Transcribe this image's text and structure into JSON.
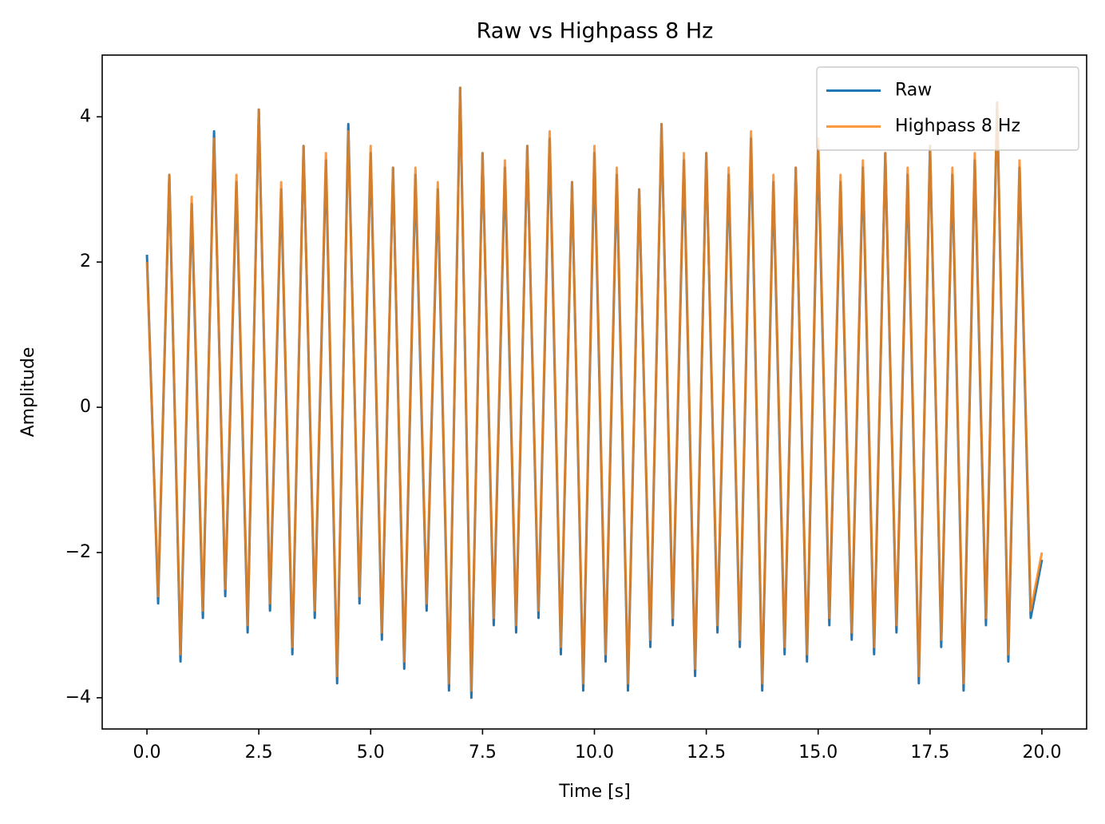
{
  "chart_data": {
    "type": "line",
    "title": "Raw vs Highpass 8 Hz",
    "xlabel": "Time [s]",
    "ylabel": "Amplitude",
    "x": [
      0,
      0.25,
      0.5,
      0.75,
      1,
      1.25,
      1.5,
      1.75,
      2,
      2.25,
      2.5,
      2.75,
      3,
      3.25,
      3.5,
      3.75,
      4,
      4.25,
      4.5,
      4.75,
      5,
      5.25,
      5.5,
      5.75,
      6,
      6.25,
      6.5,
      6.75,
      7,
      7.25,
      7.5,
      7.75,
      8,
      8.25,
      8.5,
      8.75,
      9,
      9.25,
      9.5,
      9.75,
      10,
      10.25,
      10.5,
      10.75,
      11,
      11.25,
      11.5,
      11.75,
      12,
      12.25,
      12.5,
      12.75,
      13,
      13.25,
      13.5,
      13.75,
      14,
      14.25,
      14.5,
      14.75,
      15,
      15.25,
      15.5,
      15.75,
      16,
      16.25,
      16.5,
      16.75,
      17,
      17.25,
      17.5,
      17.75,
      18,
      18.25,
      18.5,
      18.75,
      19,
      19.25,
      19.5,
      19.75,
      20
    ],
    "series": [
      {
        "name": "Raw",
        "color": "#1f77b4",
        "opacity": 1,
        "values": [
          2.1,
          -2.7,
          3.2,
          -3.5,
          2.8,
          -2.9,
          3.8,
          -2.6,
          3.1,
          -3.1,
          4.1,
          -2.8,
          3.0,
          -3.4,
          3.6,
          -2.9,
          3.4,
          -3.8,
          3.9,
          -2.7,
          3.5,
          -3.2,
          3.3,
          -3.6,
          3.2,
          -2.8,
          3.0,
          -3.9,
          4.4,
          -4.0,
          3.5,
          -3.0,
          3.3,
          -3.1,
          3.6,
          -2.9,
          3.7,
          -3.4,
          3.1,
          -3.9,
          3.5,
          -3.5,
          3.2,
          -3.9,
          3.0,
          -3.3,
          3.9,
          -3.0,
          3.4,
          -3.7,
          3.5,
          -3.1,
          3.2,
          -3.3,
          3.7,
          -3.9,
          3.1,
          -3.4,
          3.3,
          -3.5,
          3.6,
          -3.0,
          3.1,
          -3.2,
          3.3,
          -3.4,
          3.5,
          -3.1,
          3.2,
          -3.8,
          3.6,
          -3.3,
          3.2,
          -3.9,
          3.4,
          -3.0,
          4.2,
          -3.5,
          3.3,
          -2.9,
          -2.1
        ]
      },
      {
        "name": "Highpass 8 Hz",
        "color": "#ff7f0e",
        "opacity": 0.8,
        "values": [
          2.0,
          -2.6,
          3.2,
          -3.4,
          2.9,
          -2.8,
          3.7,
          -2.5,
          3.2,
          -3.0,
          4.1,
          -2.7,
          3.1,
          -3.3,
          3.6,
          -2.8,
          3.5,
          -3.7,
          3.8,
          -2.6,
          3.6,
          -3.1,
          3.3,
          -3.5,
          3.3,
          -2.7,
          3.1,
          -3.8,
          4.4,
          -3.9,
          3.5,
          -2.9,
          3.4,
          -3.0,
          3.6,
          -2.8,
          3.8,
          -3.3,
          3.1,
          -3.8,
          3.6,
          -3.4,
          3.3,
          -3.8,
          3.0,
          -3.2,
          3.9,
          -2.9,
          3.5,
          -3.6,
          3.5,
          -3.0,
          3.3,
          -3.2,
          3.8,
          -3.8,
          3.2,
          -3.3,
          3.3,
          -3.4,
          3.7,
          -2.9,
          3.2,
          -3.1,
          3.4,
          -3.3,
          3.5,
          -3.0,
          3.3,
          -3.7,
          3.6,
          -3.2,
          3.3,
          -3.8,
          3.5,
          -2.9,
          4.2,
          -3.4,
          3.4,
          -2.8,
          -2.0
        ]
      }
    ],
    "xlim": [
      -1.0,
      21.0
    ],
    "ylim": [
      -4.43,
      4.85
    ],
    "xticks": [
      {
        "value": 0,
        "label": "0.0"
      },
      2.5,
      {
        "value": 5,
        "label": "5.0"
      },
      7.5,
      {
        "value": 10,
        "label": "10.0"
      },
      12.5,
      {
        "value": 15,
        "label": "15.0"
      },
      17.5,
      {
        "value": 20,
        "label": "20.0"
      }
    ],
    "yticks": [
      {
        "value": -4,
        "label": "−4"
      },
      {
        "value": -2,
        "label": "−2"
      },
      0,
      2,
      4
    ],
    "legend": "upper right",
    "grid": false
  }
}
